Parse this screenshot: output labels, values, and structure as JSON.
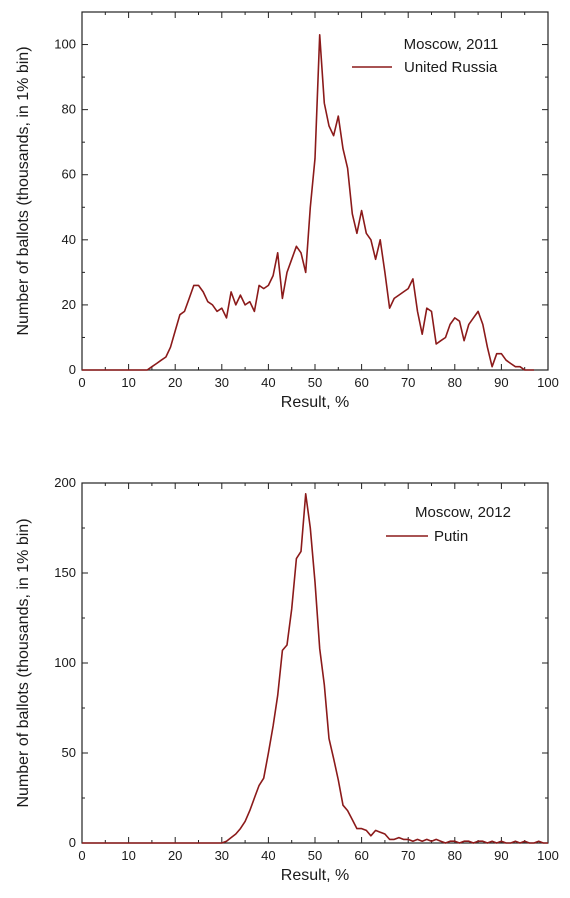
{
  "chart_data": [
    {
      "type": "line",
      "title": "Moscow, 2011",
      "xlabel": "Result, %",
      "ylabel": "Number of ballots (thousands, in 1% bin)",
      "xlim": [
        0,
        100
      ],
      "ylim": [
        0,
        110
      ],
      "xticks": [
        0,
        10,
        20,
        30,
        40,
        50,
        60,
        70,
        80,
        90,
        100
      ],
      "yticks": [
        0,
        20,
        40,
        60,
        80,
        100
      ],
      "legend_position": "top-right",
      "series": [
        {
          "name": "United Russia",
          "color": "#8b1a1a",
          "x": [
            0,
            1,
            2,
            3,
            4,
            5,
            6,
            7,
            8,
            9,
            10,
            11,
            12,
            13,
            14,
            15,
            16,
            17,
            18,
            19,
            20,
            21,
            22,
            23,
            24,
            25,
            26,
            27,
            28,
            29,
            30,
            31,
            32,
            33,
            34,
            35,
            36,
            37,
            38,
            39,
            40,
            41,
            42,
            43,
            44,
            45,
            46,
            47,
            48,
            49,
            50,
            51,
            52,
            53,
            54,
            55,
            56,
            57,
            58,
            59,
            60,
            61,
            62,
            63,
            64,
            65,
            66,
            67,
            68,
            69,
            70,
            71,
            72,
            73,
            74,
            75,
            76,
            77,
            78,
            79,
            80,
            81,
            82,
            83,
            84,
            85,
            86,
            87,
            88,
            89,
            90,
            91,
            92,
            93,
            94,
            95,
            96,
            97
          ],
          "y": [
            0,
            0,
            0,
            0,
            0,
            0,
            0,
            0,
            0,
            0,
            0,
            0,
            0,
            0,
            0,
            1,
            2,
            3,
            4,
            7,
            12,
            17,
            18,
            22,
            26,
            26,
            24,
            21,
            20,
            18,
            19,
            16,
            24,
            20,
            23,
            20,
            21,
            18,
            26,
            25,
            26,
            29,
            36,
            22,
            30,
            34,
            38,
            36,
            30,
            50,
            65,
            103,
            82,
            75,
            72,
            78,
            68,
            62,
            48,
            42,
            49,
            42,
            40,
            34,
            40,
            30,
            19,
            22,
            23,
            24,
            25,
            28,
            18,
            11,
            19,
            18,
            8,
            9,
            10,
            14,
            16,
            15,
            9,
            14,
            16,
            18,
            14,
            7,
            1,
            5,
            5,
            3,
            2,
            1,
            1,
            0,
            0,
            0
          ]
        }
      ]
    },
    {
      "type": "line",
      "title": "Moscow, 2012",
      "xlabel": "Result, %",
      "ylabel": "Number of ballots (thousands, in 1% bin)",
      "xlim": [
        0,
        100
      ],
      "ylim": [
        0,
        200
      ],
      "xticks": [
        0,
        10,
        20,
        30,
        40,
        50,
        60,
        70,
        80,
        90,
        100
      ],
      "yticks": [
        0,
        50,
        100,
        150,
        200
      ],
      "legend_position": "top-right",
      "series": [
        {
          "name": "Putin",
          "color": "#8b1a1a",
          "x": [
            0,
            10,
            20,
            30,
            31,
            32,
            33,
            34,
            35,
            36,
            37,
            38,
            39,
            40,
            41,
            42,
            43,
            44,
            45,
            46,
            47,
            48,
            49,
            50,
            51,
            52,
            53,
            54,
            55,
            56,
            57,
            58,
            59,
            60,
            61,
            62,
            63,
            64,
            65,
            66,
            67,
            68,
            69,
            70,
            71,
            72,
            73,
            74,
            75,
            76,
            77,
            78,
            79,
            80,
            81,
            82,
            83,
            84,
            85,
            86,
            87,
            88,
            89,
            90,
            91,
            92,
            93,
            94,
            95,
            96,
            97,
            98,
            99,
            100
          ],
          "y": [
            0,
            0,
            0,
            0,
            1,
            3,
            5,
            8,
            12,
            18,
            25,
            32,
            36,
            50,
            65,
            82,
            107,
            110,
            130,
            158,
            162,
            194,
            175,
            145,
            108,
            88,
            58,
            47,
            35,
            21,
            18,
            13,
            8,
            8,
            7,
            4,
            7,
            6,
            5,
            2,
            2,
            3,
            2,
            2,
            1,
            2,
            1,
            2,
            1,
            2,
            1,
            0,
            1,
            1,
            0,
            1,
            1,
            0,
            1,
            1,
            0,
            1,
            0,
            1,
            0,
            0,
            1,
            0,
            1,
            0,
            0,
            1,
            0,
            0
          ]
        }
      ]
    }
  ]
}
